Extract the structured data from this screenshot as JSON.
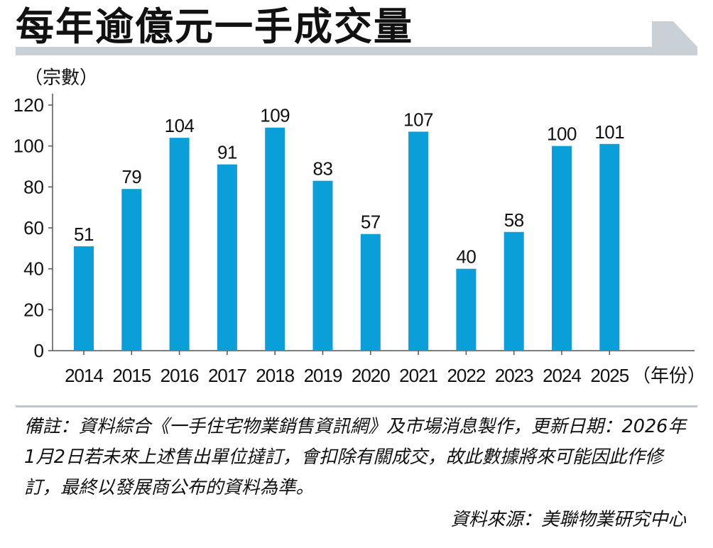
{
  "title": "每年逾億元一手成交量",
  "colors": {
    "bar": "#0a9fd8",
    "rule": "#c9d1d6",
    "axis": "#555555"
  },
  "chart_data": {
    "type": "bar",
    "title": "每年逾億元一手成交量",
    "ylabel": "（宗數）",
    "xlabel": "（年份）",
    "ylim": [
      0,
      120
    ],
    "yticks": [
      0,
      20,
      40,
      60,
      80,
      100,
      120
    ],
    "categories": [
      "2014",
      "2015",
      "2016",
      "2017",
      "2018",
      "2019",
      "2020",
      "2021",
      "2022",
      "2023",
      "2024",
      "2025"
    ],
    "values": [
      51,
      79,
      104,
      91,
      109,
      83,
      57,
      107,
      40,
      58,
      100,
      101
    ],
    "grid": false
  },
  "note": "備註：資料綜合《一手住宅物業銷售資訊網》及市場消息製作，更新日期：2026年1月2日若未來上述售出單位撻訂，會扣除有關成交，故此數據將來可能因此作修訂，最終以發展商公布的資料為準。",
  "source": "資料來源：美聯物業研究中心"
}
